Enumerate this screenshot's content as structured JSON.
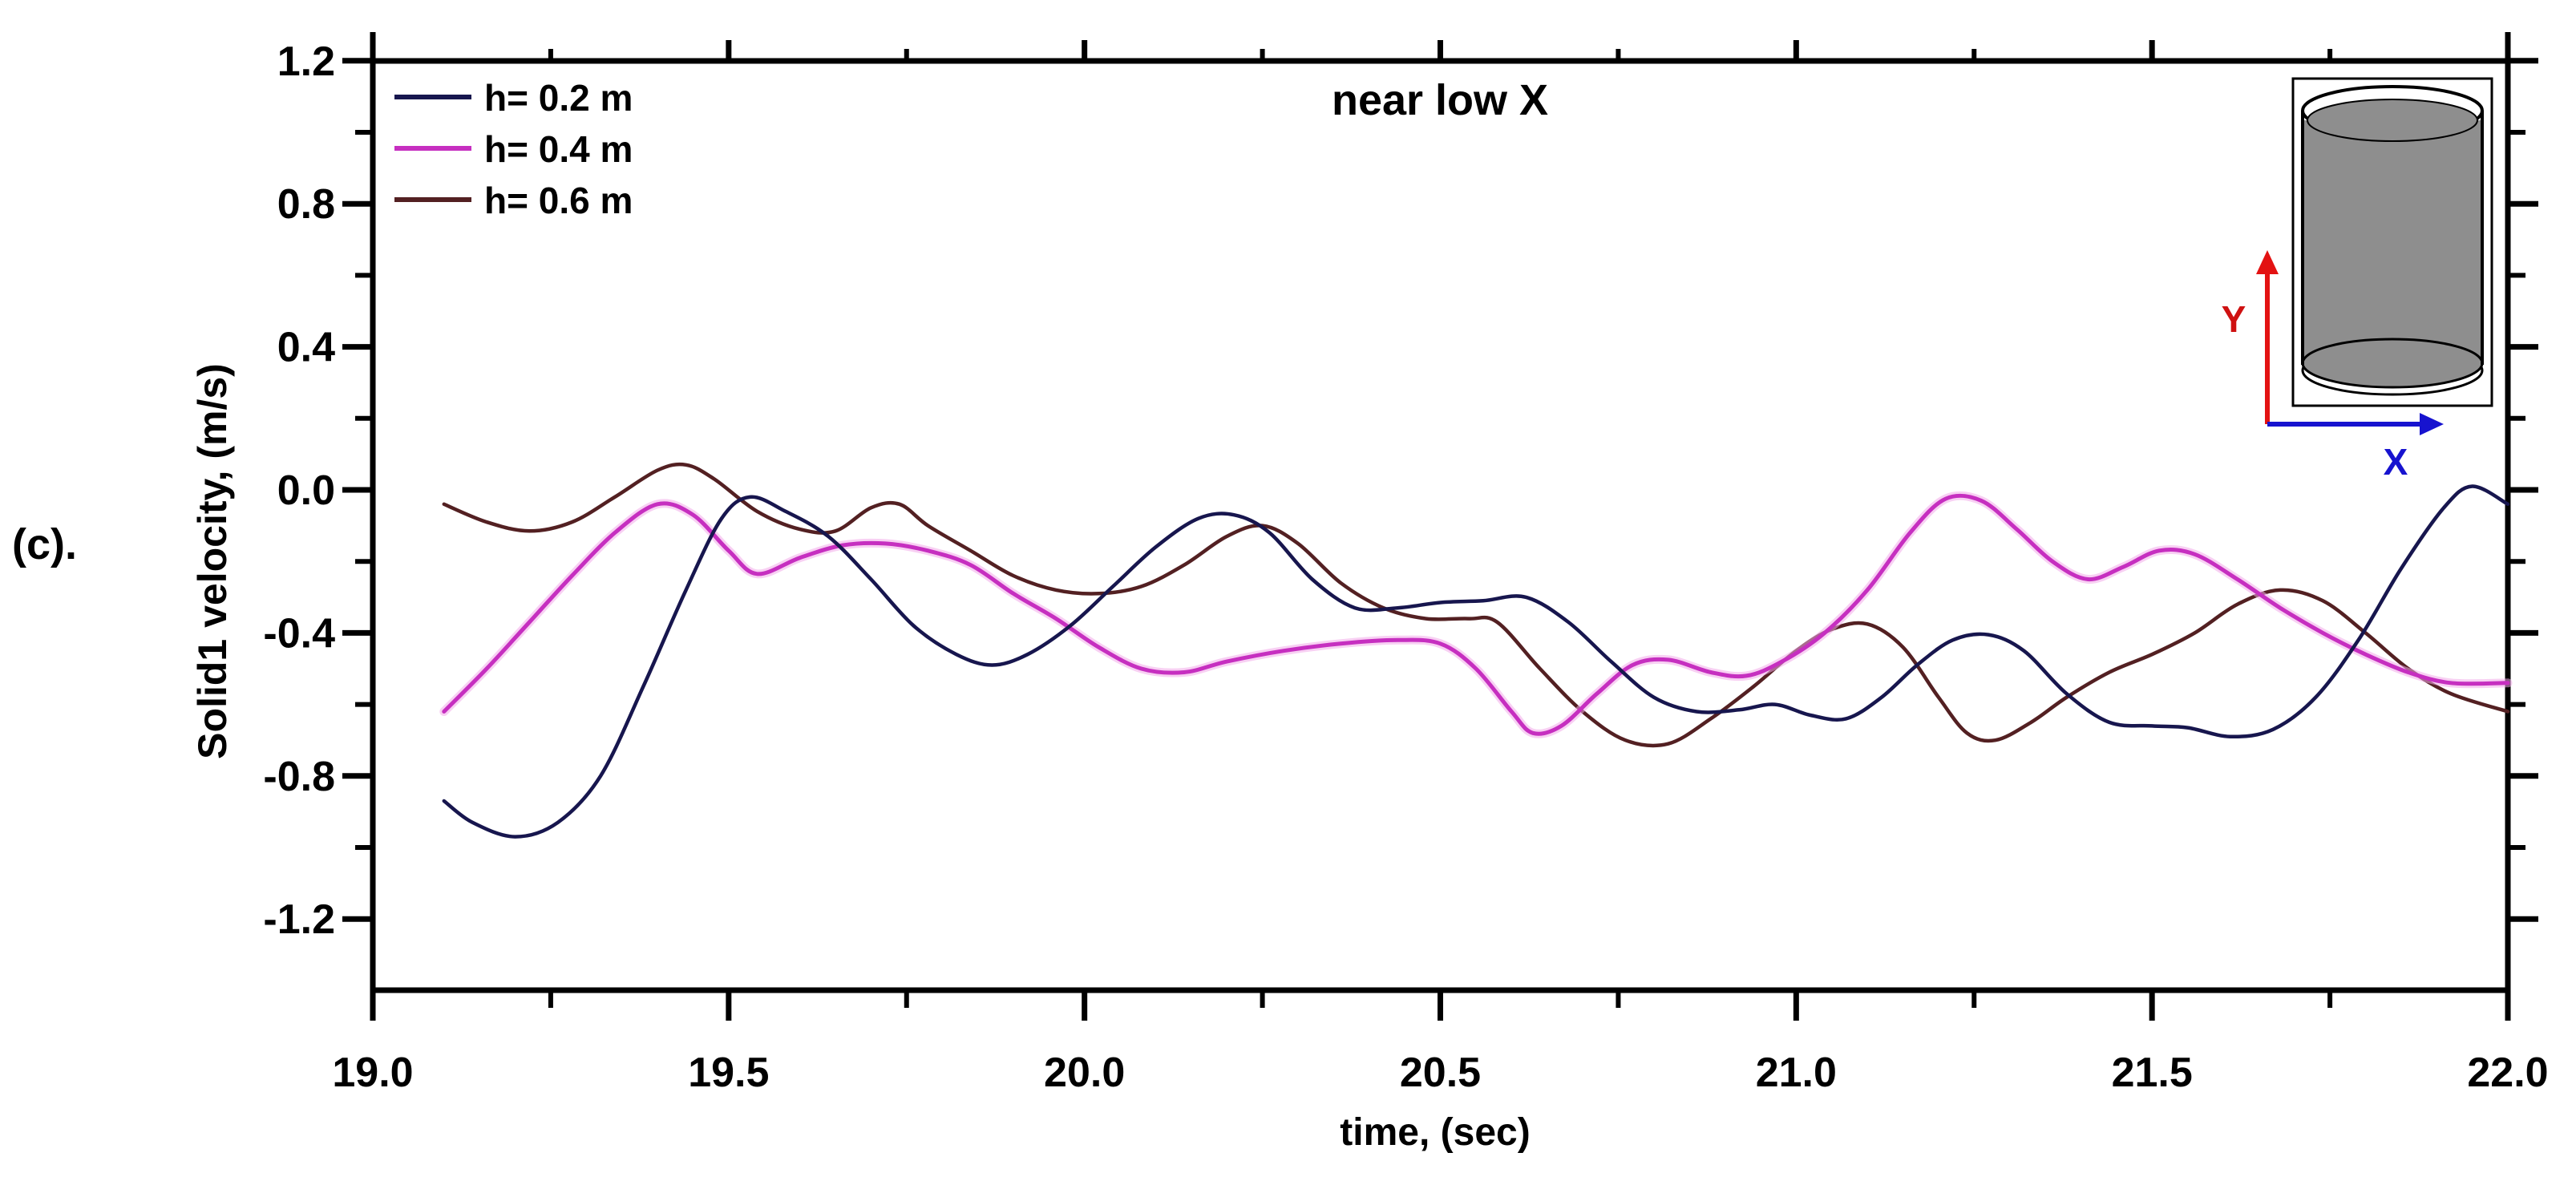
{
  "figure": {
    "panel_label": "(c).",
    "title": "near low X",
    "background": "#ffffff"
  },
  "axes": {
    "x": {
      "label": "time, (sec)",
      "range": [
        19.0,
        22.0
      ],
      "major_ticks": [
        {
          "v": 19.0,
          "label": "19.0"
        },
        {
          "v": 19.5,
          "label": "19.5"
        },
        {
          "v": 20.0,
          "label": "20.0"
        },
        {
          "v": 20.5,
          "label": "20.5"
        },
        {
          "v": 21.0,
          "label": "21.0"
        },
        {
          "v": 21.5,
          "label": "21.5"
        },
        {
          "v": 22.0,
          "label": "22.0"
        }
      ],
      "minor_ticks": [
        19.25,
        19.75,
        20.25,
        20.75,
        21.25,
        21.75
      ]
    },
    "y": {
      "label": "Solid1 velocity, (m/s)",
      "range": [
        -1.4,
        1.2
      ],
      "major_ticks": [
        {
          "v": 1.2,
          "label": "1.2"
        },
        {
          "v": 0.8,
          "label": "0.8"
        },
        {
          "v": 0.4,
          "label": "0.4"
        },
        {
          "v": 0.0,
          "label": "0.0"
        },
        {
          "v": -0.4,
          "label": "-0.4"
        },
        {
          "v": -0.8,
          "label": "-0.8"
        },
        {
          "v": -1.2,
          "label": "-1.2"
        }
      ],
      "minor_ticks": [
        1.0,
        0.6,
        0.2,
        -0.2,
        -0.6,
        -1.0
      ]
    },
    "axis_color": "#000000"
  },
  "legend": {
    "items": [
      {
        "label": "h= 0.2 m",
        "color": "#17164e"
      },
      {
        "label": "h= 0.4 m",
        "color": "#c62fc0"
      },
      {
        "label": "h= 0.6 m",
        "color": "#532022"
      }
    ]
  },
  "inset": {
    "x_axis_label": "X",
    "y_axis_label": "Y",
    "x_color": "#1713cf",
    "y_color": "#e31212",
    "cylinder_fill": "#8e8e8e"
  },
  "chart_data": {
    "type": "line",
    "title": "near low X",
    "xlabel": "time, (sec)",
    "ylabel": "Solid1 velocity, (m/s)",
    "xlim": [
      19.0,
      22.0
    ],
    "ylim": [
      -1.4,
      1.2
    ],
    "grid": false,
    "legend_position": "top-left",
    "series": [
      {
        "name": "h= 0.2 m",
        "color": "#17164e",
        "points": [
          [
            19.1,
            -0.87
          ],
          [
            19.14,
            -0.93
          ],
          [
            19.2,
            -0.97
          ],
          [
            19.26,
            -0.93
          ],
          [
            19.32,
            -0.8
          ],
          [
            19.38,
            -0.55
          ],
          [
            19.44,
            -0.28
          ],
          [
            19.49,
            -0.08
          ],
          [
            19.53,
            -0.02
          ],
          [
            19.58,
            -0.06
          ],
          [
            19.64,
            -0.13
          ],
          [
            19.7,
            -0.25
          ],
          [
            19.76,
            -0.38
          ],
          [
            19.82,
            -0.46
          ],
          [
            19.87,
            -0.49
          ],
          [
            19.92,
            -0.46
          ],
          [
            19.98,
            -0.38
          ],
          [
            20.04,
            -0.27
          ],
          [
            20.1,
            -0.16
          ],
          [
            20.16,
            -0.08
          ],
          [
            20.21,
            -0.07
          ],
          [
            20.26,
            -0.12
          ],
          [
            20.32,
            -0.25
          ],
          [
            20.38,
            -0.33
          ],
          [
            20.44,
            -0.33
          ],
          [
            20.5,
            -0.315
          ],
          [
            20.56,
            -0.31
          ],
          [
            20.62,
            -0.3
          ],
          [
            20.68,
            -0.37
          ],
          [
            20.74,
            -0.48
          ],
          [
            20.8,
            -0.58
          ],
          [
            20.86,
            -0.62
          ],
          [
            20.92,
            -0.615
          ],
          [
            20.97,
            -0.6
          ],
          [
            21.02,
            -0.63
          ],
          [
            21.07,
            -0.64
          ],
          [
            21.12,
            -0.58
          ],
          [
            21.17,
            -0.49
          ],
          [
            21.22,
            -0.42
          ],
          [
            21.27,
            -0.405
          ],
          [
            21.32,
            -0.45
          ],
          [
            21.38,
            -0.57
          ],
          [
            21.44,
            -0.65
          ],
          [
            21.5,
            -0.66
          ],
          [
            21.55,
            -0.665
          ],
          [
            21.61,
            -0.69
          ],
          [
            21.67,
            -0.67
          ],
          [
            21.73,
            -0.58
          ],
          [
            21.79,
            -0.42
          ],
          [
            21.85,
            -0.22
          ],
          [
            21.91,
            -0.05
          ],
          [
            21.95,
            0.01
          ],
          [
            22.0,
            -0.04
          ]
        ]
      },
      {
        "name": "h= 0.4 m",
        "color": "#c62fc0",
        "points": [
          [
            19.1,
            -0.62
          ],
          [
            19.16,
            -0.5
          ],
          [
            19.22,
            -0.37
          ],
          [
            19.28,
            -0.24
          ],
          [
            19.34,
            -0.12
          ],
          [
            19.4,
            -0.04
          ],
          [
            19.45,
            -0.07
          ],
          [
            19.5,
            -0.17
          ],
          [
            19.54,
            -0.235
          ],
          [
            19.6,
            -0.19
          ],
          [
            19.66,
            -0.155
          ],
          [
            19.72,
            -0.15
          ],
          [
            19.78,
            -0.17
          ],
          [
            19.84,
            -0.21
          ],
          [
            19.9,
            -0.29
          ],
          [
            19.96,
            -0.36
          ],
          [
            20.02,
            -0.44
          ],
          [
            20.08,
            -0.5
          ],
          [
            20.14,
            -0.51
          ],
          [
            20.2,
            -0.48
          ],
          [
            20.28,
            -0.45
          ],
          [
            20.36,
            -0.43
          ],
          [
            20.44,
            -0.42
          ],
          [
            20.5,
            -0.43
          ],
          [
            20.55,
            -0.5
          ],
          [
            20.6,
            -0.62
          ],
          [
            20.63,
            -0.68
          ],
          [
            20.67,
            -0.66
          ],
          [
            20.72,
            -0.57
          ],
          [
            20.77,
            -0.49
          ],
          [
            20.82,
            -0.475
          ],
          [
            20.88,
            -0.51
          ],
          [
            20.93,
            -0.52
          ],
          [
            20.98,
            -0.48
          ],
          [
            21.04,
            -0.4
          ],
          [
            21.1,
            -0.28
          ],
          [
            21.16,
            -0.12
          ],
          [
            21.21,
            -0.025
          ],
          [
            21.26,
            -0.03
          ],
          [
            21.31,
            -0.11
          ],
          [
            21.36,
            -0.2
          ],
          [
            21.41,
            -0.25
          ],
          [
            21.46,
            -0.215
          ],
          [
            21.51,
            -0.17
          ],
          [
            21.56,
            -0.18
          ],
          [
            21.62,
            -0.25
          ],
          [
            21.68,
            -0.33
          ],
          [
            21.74,
            -0.4
          ],
          [
            21.8,
            -0.46
          ],
          [
            21.86,
            -0.51
          ],
          [
            21.92,
            -0.54
          ],
          [
            22.0,
            -0.54
          ]
        ]
      },
      {
        "name": "h= 0.6 m",
        "color": "#532022",
        "points": [
          [
            19.1,
            -0.04
          ],
          [
            19.16,
            -0.09
          ],
          [
            19.22,
            -0.115
          ],
          [
            19.28,
            -0.09
          ],
          [
            19.34,
            -0.02
          ],
          [
            19.4,
            0.055
          ],
          [
            19.44,
            0.07
          ],
          [
            19.48,
            0.03
          ],
          [
            19.54,
            -0.06
          ],
          [
            19.6,
            -0.11
          ],
          [
            19.65,
            -0.115
          ],
          [
            19.7,
            -0.05
          ],
          [
            19.74,
            -0.04
          ],
          [
            19.78,
            -0.1
          ],
          [
            19.84,
            -0.17
          ],
          [
            19.9,
            -0.24
          ],
          [
            19.96,
            -0.28
          ],
          [
            20.02,
            -0.29
          ],
          [
            20.08,
            -0.27
          ],
          [
            20.14,
            -0.21
          ],
          [
            20.2,
            -0.13
          ],
          [
            20.25,
            -0.1
          ],
          [
            20.3,
            -0.15
          ],
          [
            20.36,
            -0.26
          ],
          [
            20.42,
            -0.33
          ],
          [
            20.48,
            -0.36
          ],
          [
            20.54,
            -0.36
          ],
          [
            20.58,
            -0.37
          ],
          [
            20.64,
            -0.5
          ],
          [
            20.7,
            -0.62
          ],
          [
            20.76,
            -0.7
          ],
          [
            20.82,
            -0.71
          ],
          [
            20.88,
            -0.64
          ],
          [
            20.94,
            -0.55
          ],
          [
            21.0,
            -0.45
          ],
          [
            21.05,
            -0.39
          ],
          [
            21.1,
            -0.375
          ],
          [
            21.15,
            -0.44
          ],
          [
            21.2,
            -0.58
          ],
          [
            21.24,
            -0.68
          ],
          [
            21.28,
            -0.7
          ],
          [
            21.33,
            -0.65
          ],
          [
            21.38,
            -0.58
          ],
          [
            21.44,
            -0.51
          ],
          [
            21.5,
            -0.46
          ],
          [
            21.56,
            -0.4
          ],
          [
            21.62,
            -0.32
          ],
          [
            21.68,
            -0.28
          ],
          [
            21.74,
            -0.31
          ],
          [
            21.8,
            -0.4
          ],
          [
            21.86,
            -0.5
          ],
          [
            21.92,
            -0.57
          ],
          [
            22.0,
            -0.62
          ]
        ]
      }
    ]
  }
}
